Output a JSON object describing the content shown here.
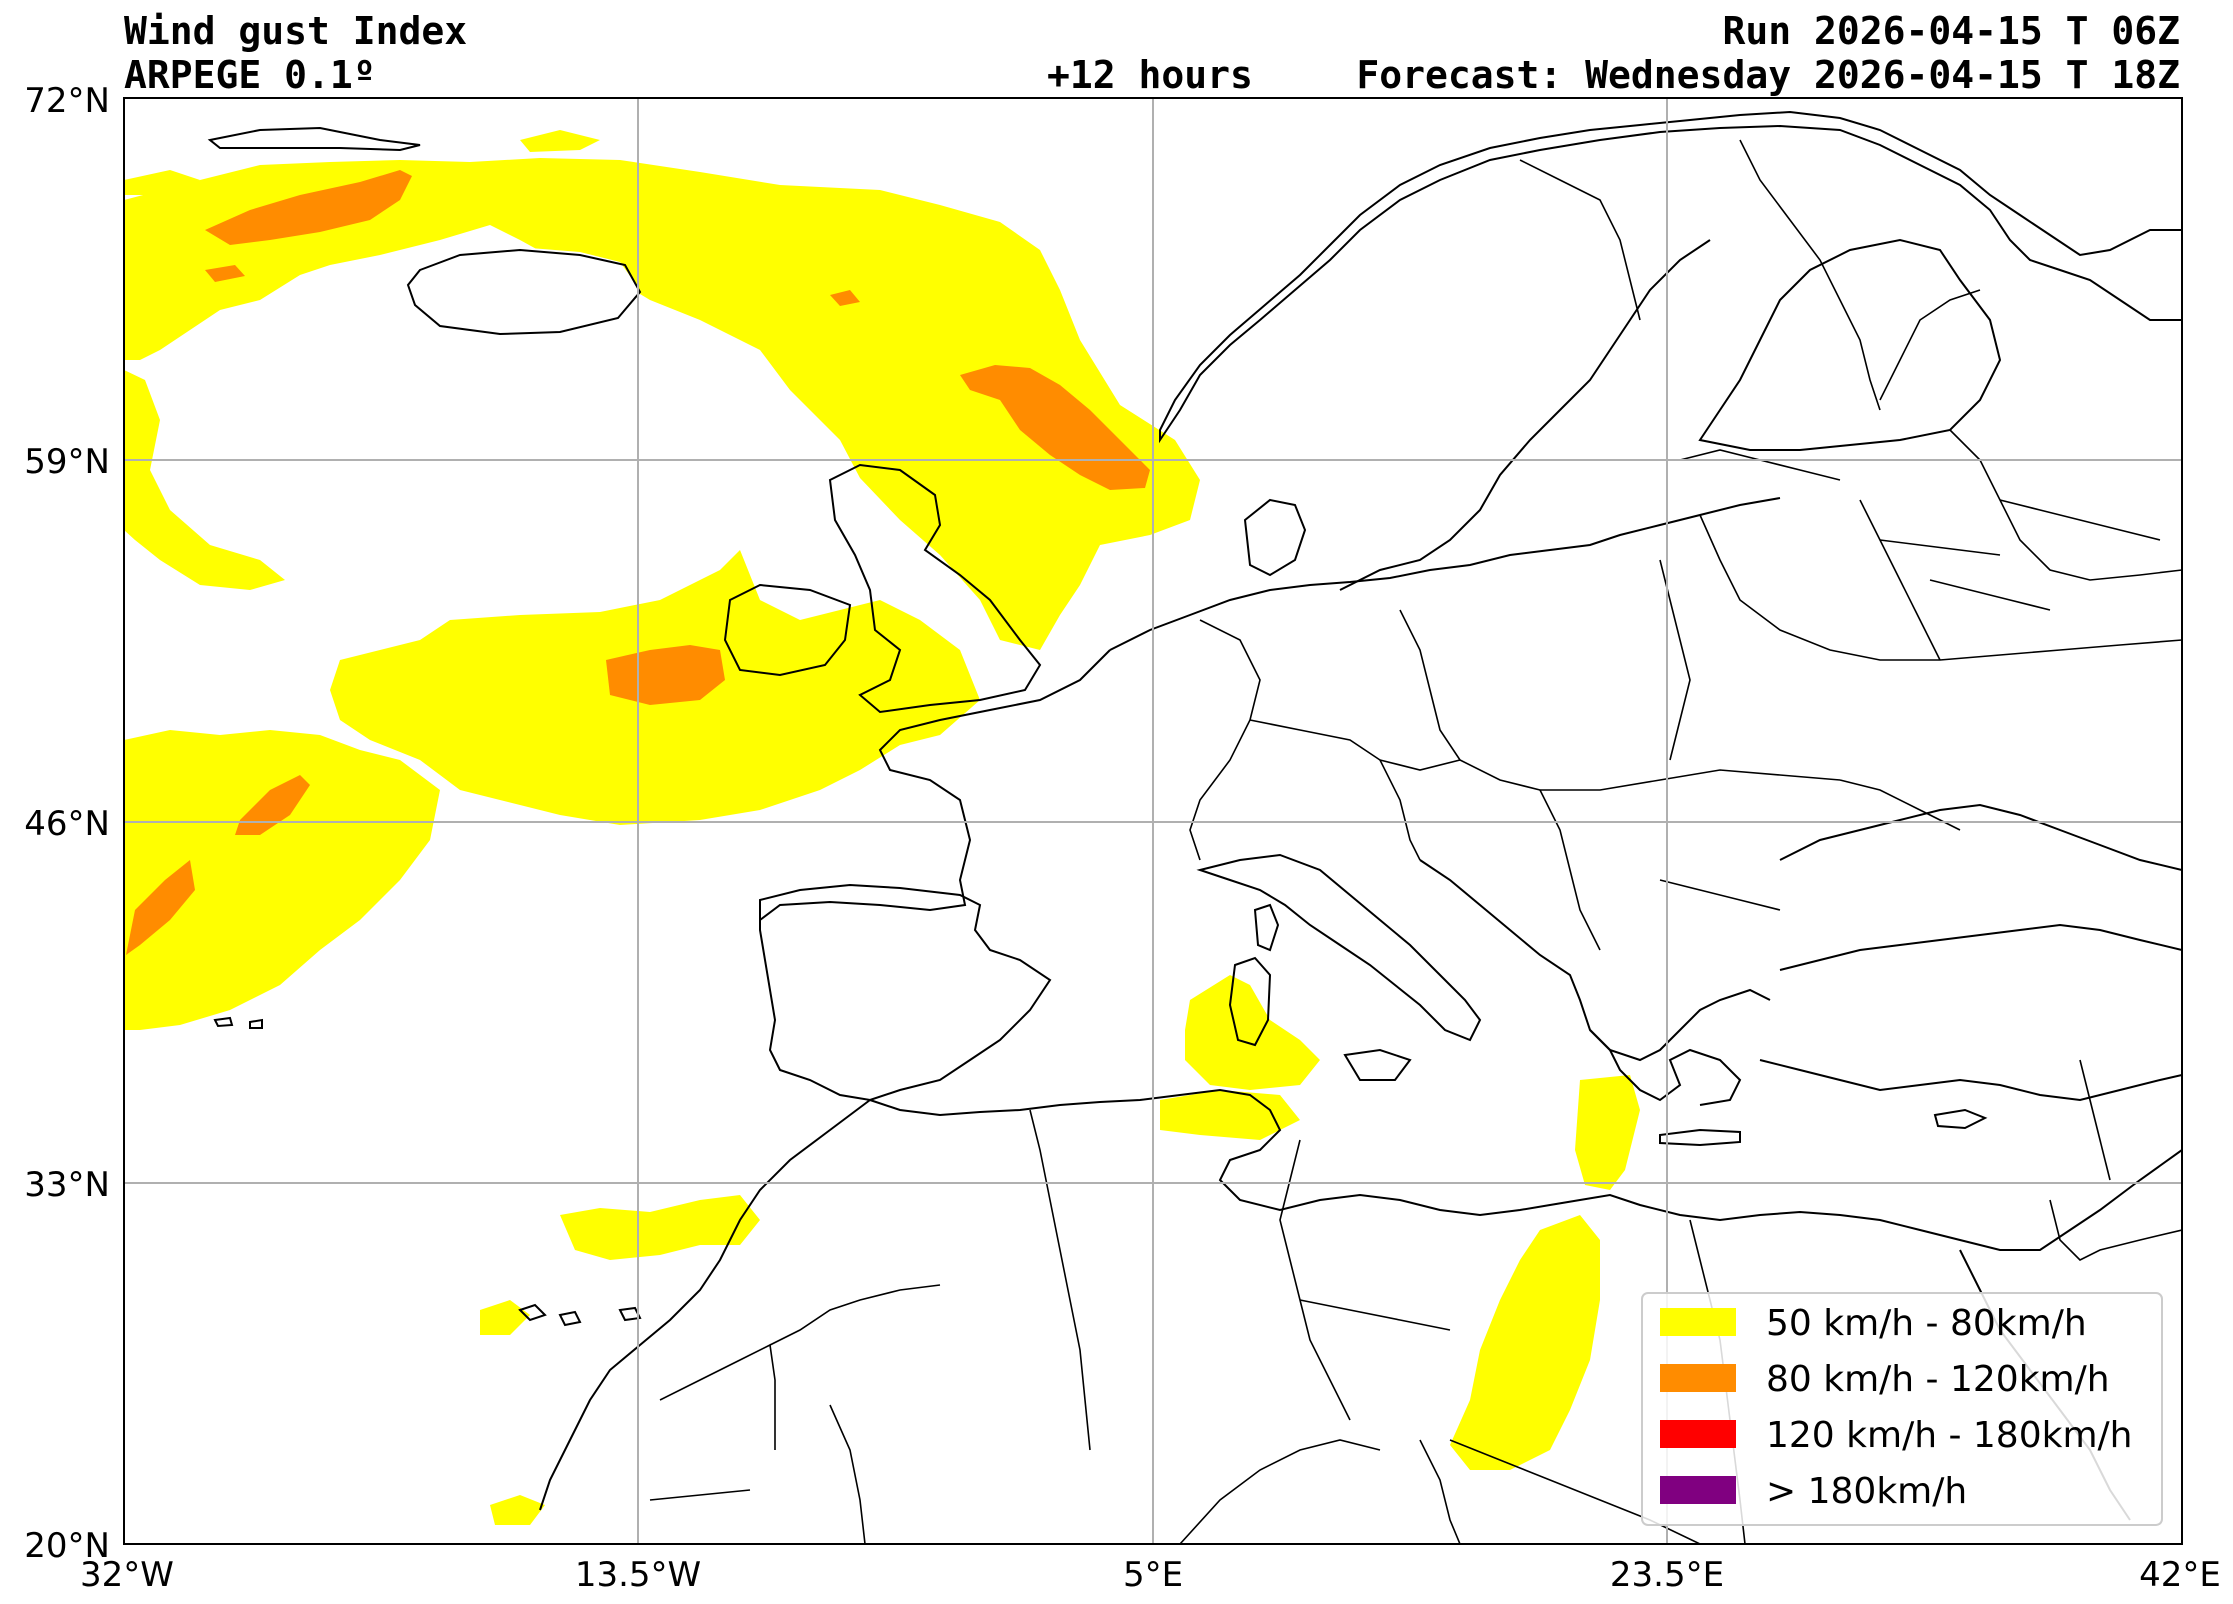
{
  "header": {
    "title": "Wind gust Index",
    "model": "ARPEGE 0.1º",
    "run": "Run 2026-04-15 T 06Z",
    "lead": "+12 hours",
    "forecast": "Forecast: Wednesday 2026-04-15 T 18Z"
  },
  "axes": {
    "lat_labels": [
      "72°N",
      "59°N",
      "46°N",
      "33°N",
      "20°N"
    ],
    "lon_labels": [
      "32°W",
      "13.5°W",
      "5°E",
      "23.5°E",
      "42°E"
    ]
  },
  "legend": {
    "items": [
      {
        "label": "50 km/h - 80km/h",
        "color": "#ffff00"
      },
      {
        "label": "80 km/h - 120km/h",
        "color": "#ff8c00"
      },
      {
        "label": "120 km/h - 180km/h",
        "color": "#ff0000"
      },
      {
        "label": "> 180km/h",
        "color": "#800080"
      }
    ]
  }
}
